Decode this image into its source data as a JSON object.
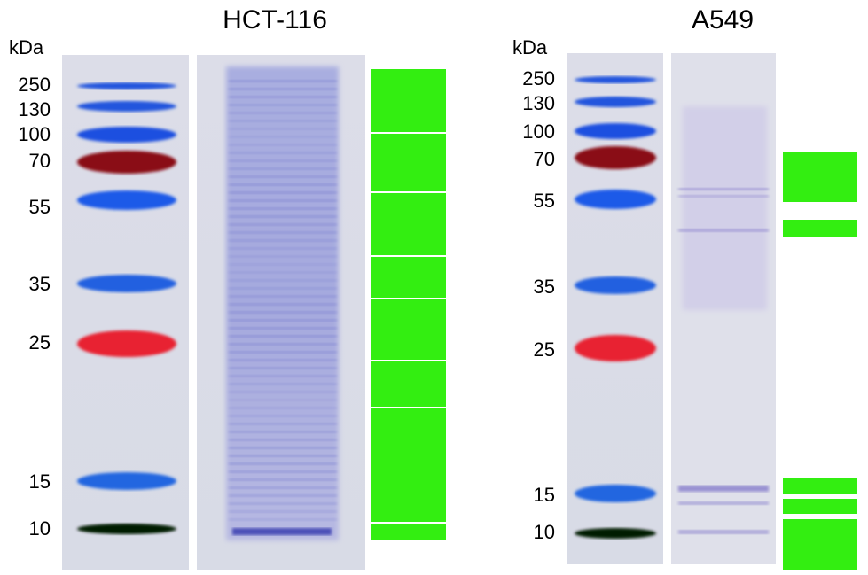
{
  "panels": [
    {
      "title": "HCT-116",
      "unit": "kDa",
      "markers": [
        "250",
        "130",
        "100",
        "70",
        "55",
        "35",
        "25",
        "15",
        "10"
      ]
    },
    {
      "title": "A549",
      "unit": "kDa",
      "markers": [
        "250",
        "130",
        "100",
        "70",
        "55",
        "35",
        "25",
        "15",
        "10"
      ]
    }
  ]
}
